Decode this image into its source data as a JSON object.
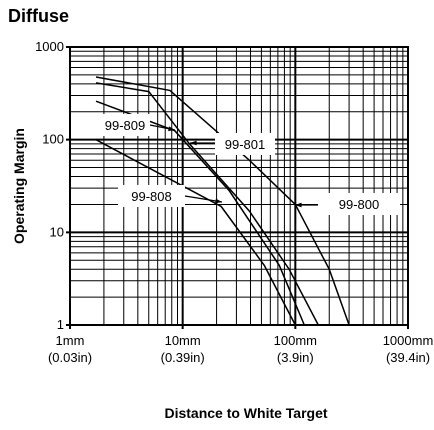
{
  "chart_data": {
    "type": "line",
    "title": "Diffuse",
    "x_label": "Distance to White Target",
    "y_label": "Operating Margin",
    "xscale": "log",
    "yscale": "log",
    "grid": true,
    "xlim": [
      1,
      1000
    ],
    "ylim": [
      1,
      1000
    ],
    "xticks": [
      {
        "value": 1,
        "label": "1mm (0.03in)"
      },
      {
        "value": 10,
        "label": "10mm (0.39in)"
      },
      {
        "value": 100,
        "label": "100mm (3.9in)"
      },
      {
        "value": 1000,
        "label": "1000mm (39.4in)"
      }
    ],
    "yticks": [
      1,
      10,
      100,
      1000
    ],
    "series": [
      {
        "name": "99-800",
        "color": "#000000",
        "x": [
          1.7,
          7.7,
          39,
          100,
          200,
          300
        ],
        "values": [
          475,
          340,
          60,
          20,
          4,
          1
        ]
      },
      {
        "name": "99-801",
        "color": "#000000",
        "x": [
          1.7,
          5,
          11.5,
          39,
          88,
          160
        ],
        "values": [
          410,
          330,
          90,
          17,
          4,
          1
        ]
      },
      {
        "name": "99-809",
        "color": "#000000",
        "x": [
          1.7,
          8.5,
          26,
          72,
          120
        ],
        "values": [
          260,
          125,
          28,
          4.4,
          1
        ]
      },
      {
        "name": "99-808",
        "color": "#000000",
        "x": [
          1.7,
          22,
          53,
          100
        ],
        "values": [
          100,
          19,
          4.4,
          1
        ]
      }
    ]
  }
}
